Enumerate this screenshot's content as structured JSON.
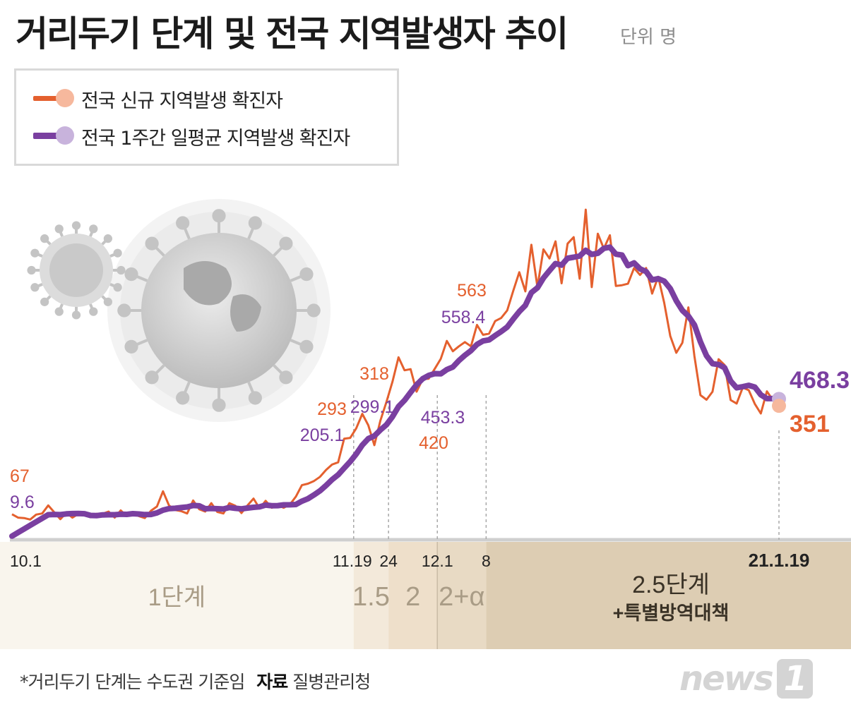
{
  "header": {
    "title": "거리두기 단계 및 전국 지역발생자 추이",
    "unit": "단위 명"
  },
  "legend": {
    "daily_label": "전국 신규 지역발생 확진자",
    "avg_label": "전국 1주간 일평균 지역발생 확진자"
  },
  "colors": {
    "daily": "#e4602e",
    "avg": "#7a3fa0",
    "daily_light": "#f6b89d",
    "avg_light": "#c8b3dc",
    "stage1": "#f9f5ed",
    "stage15": "#f3e9da",
    "stage2": "#eedfca",
    "stage2a": "#e8dac4",
    "stage25": "#ddcdb3"
  },
  "chart_data": {
    "type": "line",
    "x_range": [
      "2020-10-01",
      "2021-01-19"
    ],
    "series": [
      {
        "name": "전국 신규 지역발생 확진자",
        "values": [
          67,
          58,
          57,
          53,
          66,
          69,
          90,
          72,
          54,
          71,
          58,
          68,
          65,
          59,
          68,
          68,
          74,
          58,
          77,
          62,
          72,
          62,
          57,
          76,
          87,
          127,
          90,
          78,
          75,
          69,
          103,
          80,
          74,
          96,
          73,
          69,
          96,
          89,
          70,
          90,
          108,
          82,
          102,
          84,
          90,
          84,
          92,
          113,
          143,
          147,
          154,
          165,
          183,
          197,
          203,
          265,
          267,
          292,
          330,
          300,
          248,
          312,
          361,
          414,
          478,
          444,
          447,
          388,
          421,
          422,
          448,
          474,
          521,
          494,
          507,
          518,
          507,
          563,
          537,
          540,
          573,
          581,
          601,
          652,
          701,
          651,
          773,
          662,
          761,
          737,
          782,
          672,
          776,
          793,
          684,
          865,
          662,
          802,
          763,
          798,
          665,
          667,
          671,
          712,
          694,
          712,
          645,
          689,
          621,
          534,
          490,
          516,
          609,
          481,
          379,
          367,
          388,
          473,
          458,
          366,
          357,
          399,
          392,
          356,
          331,
          389,
          366,
          351
        ],
        "labels": {
          "2020-10-01": "67",
          "2020-11-24": "318",
          "2020-12-08": "563",
          "2020-11-19": "293",
          "2020-12-01": "420",
          "2021-01-19": "351"
        }
      },
      {
        "name": "전국 1주간 일평균 지역발생 확진자",
        "labels": {
          "2020-10-01": "9.6",
          "2020-11-19": "205.1",
          "2020-11-24": "299.1",
          "2020-12-01": "453.3",
          "2020-12-08": "558.4",
          "2021-01-19": "468.3"
        }
      }
    ],
    "stages": [
      {
        "label": "1단계",
        "start": "2020-10-01",
        "end": "2020-11-19"
      },
      {
        "label": "1.5",
        "start": "2020-11-19",
        "end": "2020-11-24"
      },
      {
        "label": "2",
        "start": "2020-11-24",
        "end": "2020-12-01"
      },
      {
        "label": "2+α",
        "start": "2020-12-01",
        "end": "2020-12-08"
      },
      {
        "label": "2.5단계",
        "sublabel": "+특별방역대책",
        "start": "2020-12-08",
        "end": "2021-01-19"
      }
    ],
    "x_ticks": [
      {
        "date": "2020-10-01",
        "label": "10.1"
      },
      {
        "date": "2020-11-19",
        "label": "11.19"
      },
      {
        "date": "2020-11-24",
        "label": "24"
      },
      {
        "date": "2020-12-01",
        "label": "12.1"
      },
      {
        "date": "2020-12-08",
        "label": "8"
      },
      {
        "date": "2021-01-19",
        "label": "21.1.19"
      }
    ],
    "ylim": [
      0,
      1100
    ],
    "grid": false
  },
  "footnote": {
    "note": "*거리두기 단계는 수도권 기준임",
    "source_label": "자료",
    "source": "질병관리청"
  },
  "logo": {
    "text": "news",
    "mark": "1"
  }
}
